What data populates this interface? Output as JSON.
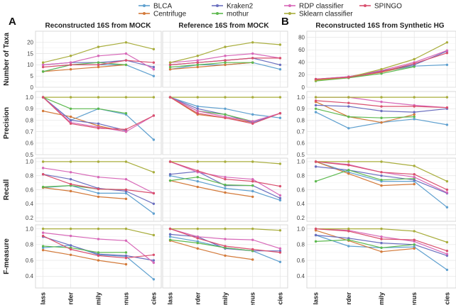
{
  "chart_data": {
    "type": "line",
    "categories": [
      "Class",
      "Order",
      "Family",
      "Genus",
      "Species"
    ],
    "legend": {
      "position": "top-center",
      "entries": [
        {
          "name": "BLCA",
          "color": "#5fa0cf"
        },
        {
          "name": "Centrifuge",
          "color": "#d37a3a"
        },
        {
          "name": "Kraken2",
          "color": "#6b6fbf"
        },
        {
          "name": "mothur",
          "color": "#5db94f"
        },
        {
          "name": "RDP classifier",
          "color": "#d768b8"
        },
        {
          "name": "Sklearn classifier",
          "color": "#a8ad3c"
        },
        {
          "name": "SPINGO",
          "color": "#d94f6e"
        }
      ]
    },
    "panel_labels": [
      "A",
      "B"
    ],
    "column_titles": [
      "Reconstructed 16S from MOCK",
      "Reference 16S from MOCK",
      "Reconstructed 16S from Synthetic HG"
    ],
    "row_labels": [
      "Number of Taxa",
      "Precision",
      "Recall",
      "F-measure"
    ],
    "rows": [
      {
        "name": "Number of Taxa",
        "ylims": [
          [
            0,
            25
          ],
          [
            0,
            25
          ],
          [
            0,
            90
          ]
        ],
        "yticks": [
          [
            "0",
            "5",
            "10",
            "15",
            "20"
          ],
          [
            "",
            "",
            "",
            "",
            ""
          ],
          [
            "0",
            "20",
            "40",
            "60",
            "80"
          ]
        ],
        "ytick_values": [
          [
            0,
            5,
            10,
            15,
            20
          ],
          [
            0,
            5,
            10,
            15,
            20
          ],
          [
            0,
            20,
            40,
            60,
            80
          ]
        ]
      },
      {
        "name": "Precision",
        "ylims": [
          [
            0.5,
            1.05
          ],
          [
            0.5,
            1.05
          ],
          [
            0.5,
            1.05
          ]
        ],
        "yticks": [
          [
            "0.5",
            "0.6",
            "0.7",
            "0.8",
            "0.9",
            "1.0"
          ],
          [
            "",
            "",
            "",
            "",
            "",
            ""
          ],
          [
            "0.5",
            "0.6",
            "0.7",
            "0.8",
            "0.9",
            "1.0"
          ]
        ],
        "ytick_values": [
          [
            0.5,
            0.6,
            0.7,
            0.8,
            0.9,
            1.0
          ],
          [
            0.5,
            0.6,
            0.7,
            0.8,
            0.9,
            1.0
          ],
          [
            0.5,
            0.6,
            0.7,
            0.8,
            0.9,
            1.0
          ]
        ]
      },
      {
        "name": "Recall",
        "ylims": [
          [
            0.15,
            1.05
          ],
          [
            0.15,
            1.05
          ],
          [
            0.15,
            1.05
          ]
        ],
        "yticks": [
          [
            "0.2",
            "0.4",
            "0.6",
            "0.8",
            "1.0"
          ],
          [
            "",
            "",
            "",
            "",
            ""
          ],
          [
            "0.2",
            "0.4",
            "0.6",
            "0.8",
            "1.0"
          ]
        ],
        "ytick_values": [
          [
            0.2,
            0.4,
            0.6,
            0.8,
            1.0
          ],
          [
            0.2,
            0.4,
            0.6,
            0.8,
            1.0
          ],
          [
            0.2,
            0.4,
            0.6,
            0.8,
            1.0
          ]
        ]
      },
      {
        "name": "F-measure",
        "ylims": [
          [
            0.25,
            1.05
          ],
          [
            0.25,
            1.05
          ],
          [
            0.25,
            1.05
          ]
        ],
        "yticks": [
          [
            "0.4",
            "0.6",
            "0.8",
            "1.0"
          ],
          [
            "",
            "",
            "",
            ""
          ],
          [
            "0.4",
            "0.6",
            "0.8",
            "1.0"
          ]
        ],
        "ytick_values": [
          [
            0.4,
            0.6,
            0.8,
            1.0
          ],
          [
            0.4,
            0.6,
            0.8,
            1.0
          ],
          [
            0.4,
            0.6,
            0.8,
            1.0
          ]
        ]
      }
    ],
    "data": [
      [
        {
          "BLCA": [
            7,
            10,
            10,
            10,
            5
          ],
          "Centrifuge": [
            7,
            8,
            9,
            10,
            null
          ],
          "Kraken2": [
            10,
            11,
            11,
            12,
            9
          ],
          "mothur": [
            7,
            10,
            11,
            10,
            null
          ],
          "RDP classifier": [
            10,
            11,
            14,
            15,
            8
          ],
          "Sklearn classifier": [
            11,
            14,
            18,
            20,
            17
          ],
          "SPINGO": [
            9,
            10,
            10,
            12,
            11
          ]
        },
        {
          "BLCA": [
            8,
            10,
            10,
            11,
            8
          ],
          "Centrifuge": [
            8,
            9,
            10,
            11,
            null
          ],
          "Kraken2": [
            10,
            11,
            12,
            13,
            10
          ],
          "mothur": [
            9,
            10,
            11,
            11,
            null
          ],
          "RDP classifier": [
            11,
            12,
            14,
            15,
            13
          ],
          "Sklearn classifier": [
            11,
            14,
            18,
            20,
            19
          ],
          "SPINGO": [
            10,
            11,
            12,
            13,
            13
          ]
        },
        {
          "BLCA": [
            13,
            15,
            25,
            34,
            36
          ],
          "Centrifuge": [
            12,
            16,
            24,
            36,
            null
          ],
          "Kraken2": [
            13,
            17,
            26,
            36,
            58
          ],
          "mothur": [
            10,
            15,
            22,
            33,
            null
          ],
          "RDP classifier": [
            13,
            17,
            27,
            40,
            59
          ],
          "Sklearn classifier": [
            11,
            16,
            29,
            45,
            72
          ],
          "SPINGO": [
            13,
            16,
            25,
            38,
            55
          ]
        }
      ],
      [
        {
          "BLCA": [
            1.0,
            0.8,
            0.9,
            0.85,
            0.63
          ],
          "Centrifuge": [
            0.88,
            0.83,
            0.75,
            0.7,
            null
          ],
          "Kraken2": [
            1.0,
            0.8,
            0.77,
            0.71,
            null
          ],
          "mothur": [
            1.0,
            0.9,
            0.9,
            0.86,
            null
          ],
          "RDP classifier": [
            1.0,
            0.78,
            0.74,
            0.7,
            0.84
          ],
          "Sklearn classifier": [
            1.0,
            1.0,
            1.0,
            1.0,
            1.0
          ],
          "SPINGO": [
            1.0,
            0.77,
            0.73,
            0.72,
            0.84
          ]
        },
        {
          "BLCA": [
            1.0,
            0.92,
            0.9,
            0.85,
            0.82
          ],
          "Centrifuge": [
            1.0,
            0.85,
            0.82,
            0.78,
            null
          ],
          "Kraken2": [
            1.0,
            0.9,
            0.85,
            0.78,
            0.86
          ],
          "mothur": [
            1.0,
            0.88,
            0.85,
            0.79,
            null
          ],
          "RDP classifier": [
            1.0,
            0.88,
            0.83,
            0.79,
            0.86
          ],
          "Sklearn classifier": [
            1.0,
            1.0,
            1.0,
            1.0,
            1.0
          ],
          "SPINGO": [
            1.0,
            0.86,
            0.82,
            0.77,
            0.86
          ]
        },
        {
          "BLCA": [
            0.87,
            0.73,
            0.78,
            0.81,
            0.76
          ],
          "Centrifuge": [
            0.96,
            0.83,
            0.78,
            0.85,
            null
          ],
          "Kraken2": [
            0.93,
            0.92,
            0.88,
            0.87,
            0.9
          ],
          "mothur": [
            0.9,
            0.83,
            0.82,
            0.83,
            null
          ],
          "RDP classifier": [
            1.0,
            1.0,
            0.96,
            0.93,
            0.91
          ],
          "Sklearn classifier": [
            1.0,
            1.0,
            1.0,
            1.0,
            1.0
          ],
          "SPINGO": [
            0.97,
            0.95,
            0.92,
            0.92,
            0.91
          ]
        }
      ],
      [
        {
          "BLCA": [
            0.63,
            0.66,
            0.55,
            0.55,
            0.26
          ],
          "Centrifuge": [
            0.63,
            0.58,
            0.5,
            0.47,
            null
          ],
          "Kraken2": [
            0.82,
            0.75,
            0.62,
            0.58,
            0.4
          ],
          "mothur": [
            0.64,
            0.66,
            0.61,
            0.6,
            null
          ],
          "RDP classifier": [
            0.91,
            0.85,
            0.78,
            0.75,
            0.55
          ],
          "Sklearn classifier": [
            1.0,
            1.0,
            1.0,
            1.0,
            0.85
          ],
          "SPINGO": [
            0.82,
            0.68,
            0.61,
            0.6,
            0.55
          ]
        },
        {
          "BLCA": [
            0.8,
            0.72,
            0.62,
            0.58,
            0.45
          ],
          "Centrifuge": [
            0.73,
            0.64,
            0.56,
            0.5,
            null
          ],
          "Kraken2": [
            0.82,
            0.86,
            0.66,
            0.66,
            0.48
          ],
          "mothur": [
            0.73,
            0.78,
            0.67,
            0.66,
            null
          ],
          "RDP classifier": [
            1.0,
            0.85,
            0.78,
            0.75,
            0.52
          ],
          "Sklearn classifier": [
            1.0,
            1.0,
            1.0,
            1.0,
            0.97
          ],
          "SPINGO": [
            1.0,
            0.87,
            0.75,
            0.72,
            0.65
          ]
        },
        {
          "BLCA": [
            1.0,
            0.85,
            0.72,
            0.72,
            0.35
          ],
          "Centrifuge": [
            1.0,
            0.83,
            0.66,
            0.68,
            null
          ],
          "Kraken2": [
            0.93,
            0.88,
            0.8,
            0.74,
            0.55
          ],
          "mothur": [
            0.72,
            0.88,
            0.74,
            0.76,
            null
          ],
          "RDP classifier": [
            1.0,
            0.96,
            0.85,
            0.78,
            0.56
          ],
          "Sklearn classifier": [
            1.0,
            1.0,
            1.0,
            0.94,
            0.72
          ],
          "SPINGO": [
            1.0,
            0.95,
            0.85,
            0.82,
            0.6
          ]
        }
      ],
      [
        {
          "BLCA": [
            0.76,
            0.79,
            0.67,
            0.65,
            0.36
          ],
          "Centrifuge": [
            0.73,
            0.67,
            0.6,
            0.55,
            null
          ],
          "Kraken2": [
            0.9,
            0.79,
            0.68,
            0.66,
            0.6
          ],
          "mothur": [
            0.78,
            0.76,
            0.7,
            0.7,
            null
          ],
          "RDP classifier": [
            0.95,
            0.91,
            0.87,
            0.85,
            0.57
          ],
          "Sklearn classifier": [
            1.0,
            1.0,
            1.0,
            1.0,
            0.92
          ],
          "SPINGO": [
            0.91,
            0.74,
            0.66,
            0.63,
            0.67
          ]
        },
        {
          "BLCA": [
            0.9,
            0.84,
            0.76,
            0.72,
            0.58
          ],
          "Centrifuge": [
            0.85,
            0.75,
            0.66,
            0.61,
            null
          ],
          "Kraken2": [
            0.93,
            0.9,
            0.75,
            0.72,
            0.72
          ],
          "mothur": [
            0.86,
            0.82,
            0.76,
            0.72,
            null
          ],
          "RDP classifier": [
            1.0,
            0.9,
            0.87,
            0.86,
            0.75
          ],
          "Sklearn classifier": [
            1.0,
            1.0,
            1.0,
            1.0,
            0.98
          ],
          "SPINGO": [
            1.0,
            0.88,
            0.78,
            0.74,
            0.7
          ]
        },
        {
          "BLCA": [
            0.92,
            0.78,
            0.76,
            0.77,
            0.48
          ],
          "Centrifuge": [
            0.98,
            0.85,
            0.71,
            0.75,
            null
          ],
          "Kraken2": [
            0.92,
            0.88,
            0.82,
            0.8,
            0.66
          ],
          "mothur": [
            0.84,
            0.86,
            0.76,
            0.8,
            null
          ],
          "RDP classifier": [
            1.0,
            0.98,
            0.9,
            0.84,
            0.68
          ],
          "Sklearn classifier": [
            1.0,
            1.0,
            1.0,
            0.97,
            0.83
          ],
          "SPINGO": [
            1.0,
            0.97,
            0.87,
            0.86,
            0.72
          ]
        }
      ]
    ]
  }
}
